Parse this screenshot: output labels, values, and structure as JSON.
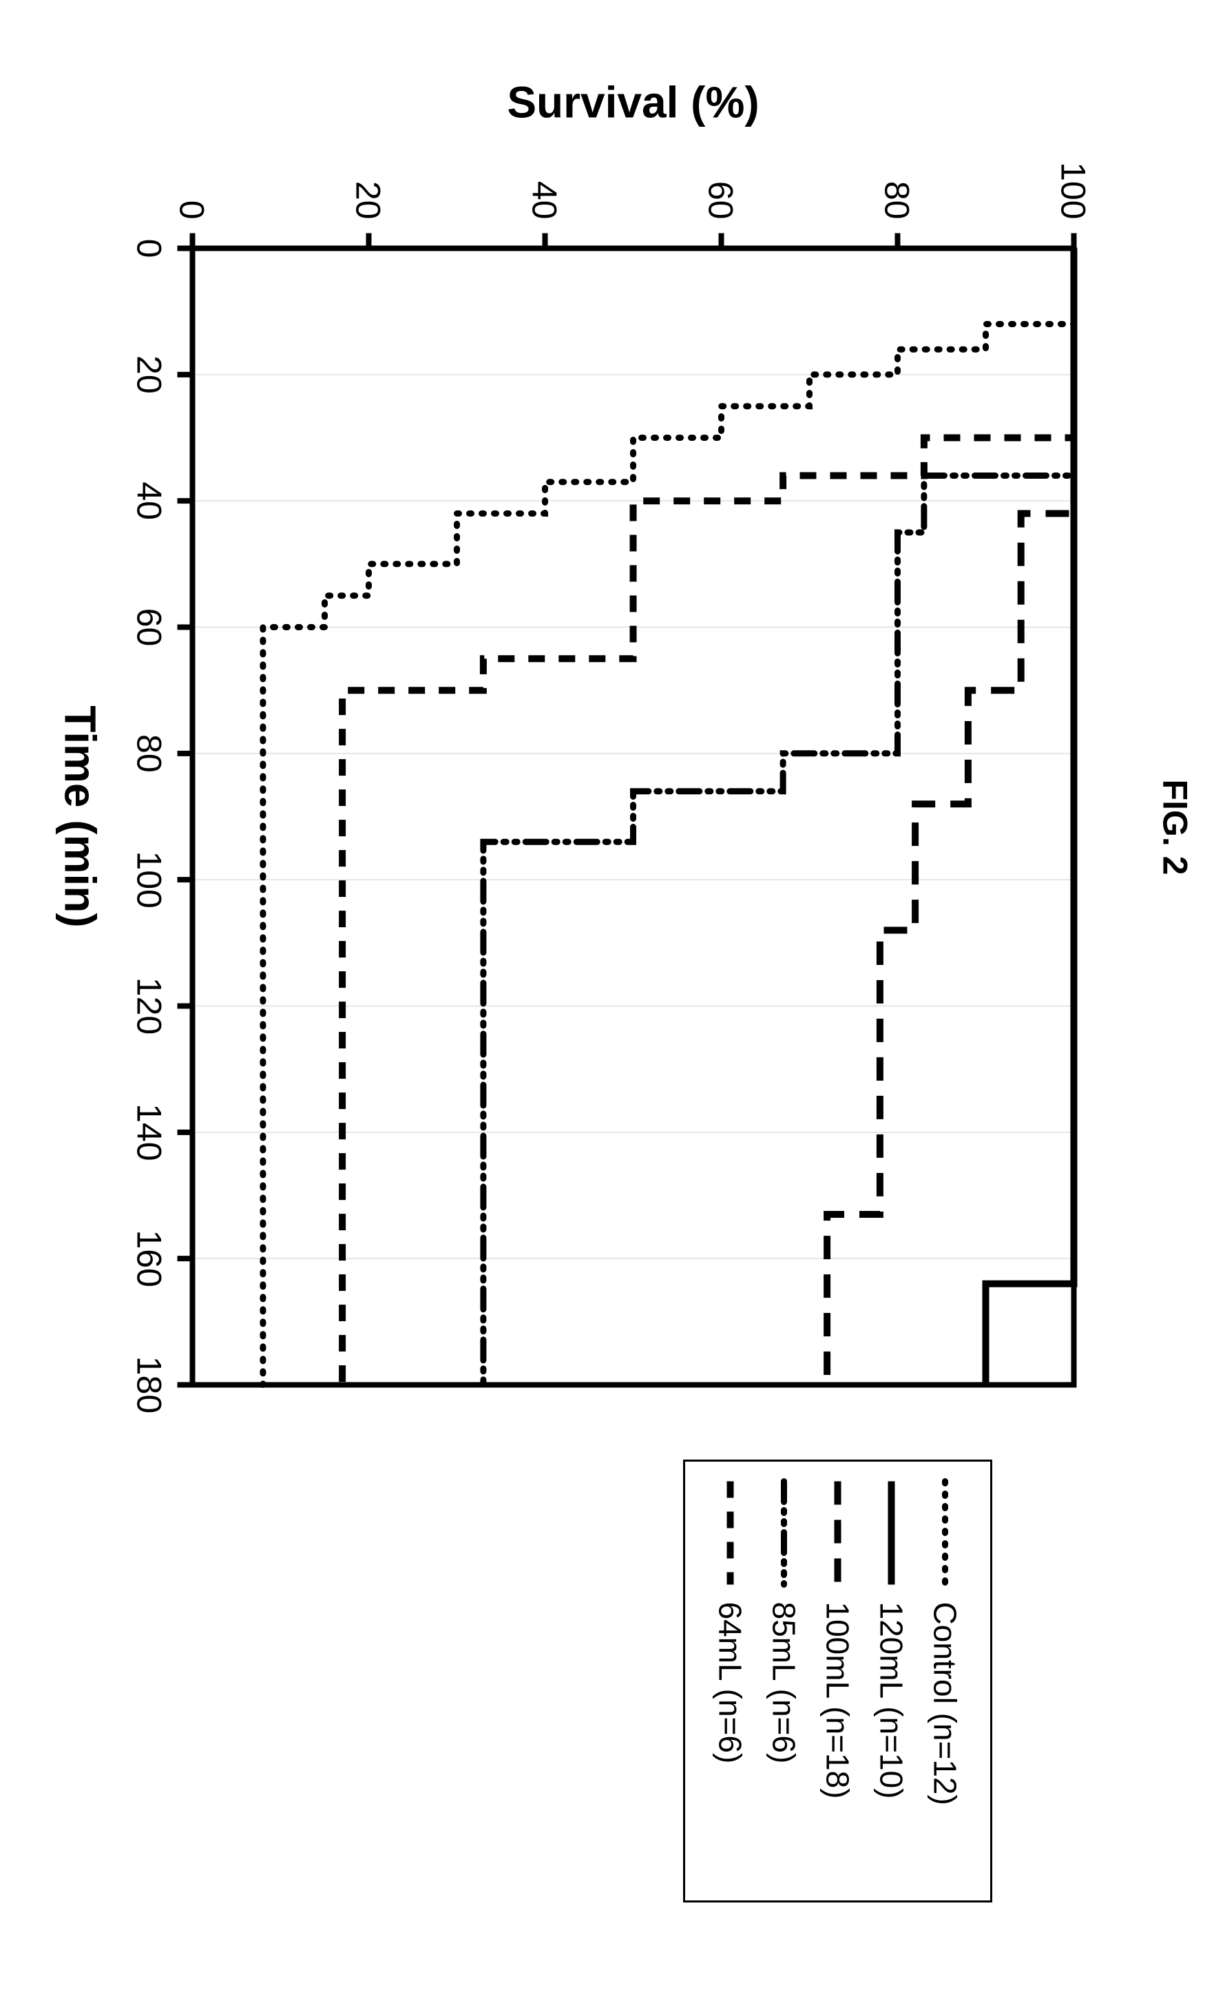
{
  "figure_label": "FIG. 2",
  "chart": {
    "type": "step-line-survival",
    "plot_bg": "#ffffff",
    "grid_color": "#e6e6e6",
    "axis_color": "#000000",
    "axis_line_width": 8,
    "tick_length": 22,
    "tick_width": 8,
    "x": {
      "label": "Time (min)",
      "min": 0,
      "max": 180,
      "ticks": [
        0,
        20,
        40,
        60,
        80,
        100,
        120,
        140,
        160,
        180
      ],
      "label_fontsize": 64,
      "tick_fontsize": 50,
      "label_weight": "bold"
    },
    "y": {
      "label": "Survival (%)",
      "min": 0,
      "max": 100,
      "ticks": [
        0,
        20,
        40,
        60,
        80,
        100
      ],
      "label_fontsize": 64,
      "tick_fontsize": 50,
      "label_weight": "bold"
    },
    "legend": {
      "border_color": "#000000",
      "border_width": 3,
      "bg": "#ffffff",
      "fontsize": 46,
      "items": [
        {
          "key": "control",
          "label": "Control (n=12)"
        },
        {
          "key": "v120",
          "label": "120mL (n=10)"
        },
        {
          "key": "v100",
          "label": "100mL (n=18)"
        },
        {
          "key": "v85",
          "label": "85mL (n=6)"
        },
        {
          "key": "v64",
          "label": "64mL (n=6)"
        }
      ]
    },
    "series": {
      "control": {
        "color": "#000000",
        "width": 9,
        "dash": "3 15",
        "linecap": "round",
        "points": [
          [
            0,
            100
          ],
          [
            12,
            100
          ],
          [
            12,
            90
          ],
          [
            16,
            90
          ],
          [
            16,
            80
          ],
          [
            20,
            80
          ],
          [
            20,
            70
          ],
          [
            25,
            70
          ],
          [
            25,
            60
          ],
          [
            30,
            60
          ],
          [
            30,
            50
          ],
          [
            37,
            50
          ],
          [
            37,
            40
          ],
          [
            42,
            40
          ],
          [
            42,
            30
          ],
          [
            50,
            30
          ],
          [
            50,
            20
          ],
          [
            55,
            20
          ],
          [
            55,
            15
          ],
          [
            60,
            15
          ],
          [
            60,
            8
          ],
          [
            180,
            8
          ]
        ]
      },
      "v120": {
        "color": "#000000",
        "width": 10,
        "dash": "",
        "linecap": "butt",
        "points": [
          [
            0,
            100
          ],
          [
            164,
            100
          ],
          [
            164,
            90
          ],
          [
            180,
            90
          ]
        ]
      },
      "v100": {
        "color": "#000000",
        "width": 10,
        "dash": "34 22",
        "linecap": "butt",
        "points": [
          [
            0,
            100
          ],
          [
            42,
            100
          ],
          [
            42,
            94
          ],
          [
            70,
            94
          ],
          [
            70,
            88
          ],
          [
            88,
            88
          ],
          [
            88,
            82
          ],
          [
            108,
            82
          ],
          [
            108,
            78
          ],
          [
            153,
            78
          ],
          [
            153,
            72
          ],
          [
            180,
            72
          ]
        ]
      },
      "v85": {
        "color": "#000000",
        "width": 9,
        "dash": "30 12 4 12 4 12",
        "linecap": "round",
        "points": [
          [
            0,
            100
          ],
          [
            36,
            100
          ],
          [
            36,
            83
          ],
          [
            45,
            83
          ],
          [
            45,
            80
          ],
          [
            80,
            80
          ],
          [
            80,
            67
          ],
          [
            86,
            67
          ],
          [
            86,
            50
          ],
          [
            94,
            50
          ],
          [
            94,
            33
          ],
          [
            180,
            33
          ]
        ]
      },
      "v64": {
        "color": "#000000",
        "width": 10,
        "dash": "24 20",
        "linecap": "butt",
        "points": [
          [
            0,
            100
          ],
          [
            30,
            100
          ],
          [
            30,
            83
          ],
          [
            36,
            83
          ],
          [
            36,
            67
          ],
          [
            40,
            67
          ],
          [
            40,
            50
          ],
          [
            65,
            50
          ],
          [
            65,
            33
          ],
          [
            70,
            33
          ],
          [
            70,
            17
          ],
          [
            180,
            17
          ]
        ]
      }
    }
  }
}
